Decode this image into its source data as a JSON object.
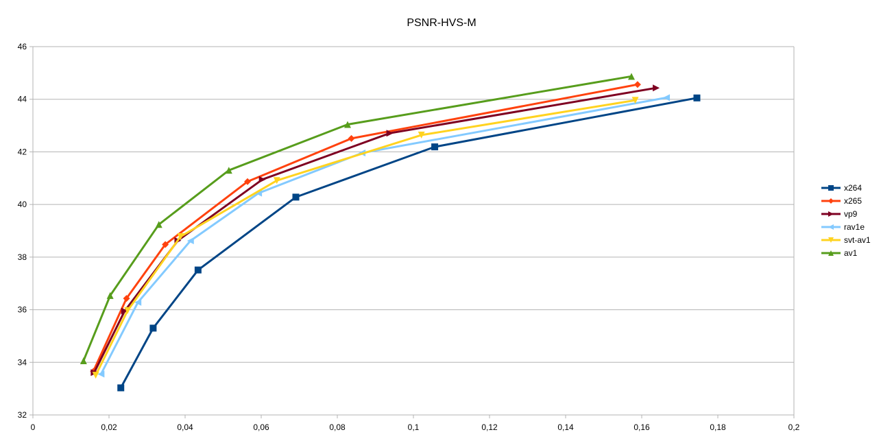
{
  "chart_data": {
    "type": "line",
    "title": "PSNR-HVS-M",
    "xlabel": "",
    "ylabel": "",
    "xlim": [
      0,
      0.2
    ],
    "ylim": [
      32,
      46
    ],
    "x_ticks": [
      0,
      0.02,
      0.04,
      0.06,
      0.08,
      0.1,
      0.12,
      0.14,
      0.16,
      0.18,
      0.2
    ],
    "x_tick_labels": [
      "0",
      "0,02",
      "0,04",
      "0,06",
      "0,08",
      "0,1",
      "0,12",
      "0,14",
      "0,16",
      "0,18",
      "0,2"
    ],
    "y_ticks": [
      32,
      34,
      36,
      38,
      40,
      42,
      44,
      46
    ],
    "y_tick_labels": [
      "32",
      "34",
      "36",
      "38",
      "40",
      "42",
      "44",
      "46"
    ],
    "grid": "horizontal",
    "legend_position": "right",
    "series": [
      {
        "name": "x264",
        "color": "#004586",
        "marker": "square",
        "points": [
          [
            0.0231,
            33.03
          ],
          [
            0.0316,
            35.3
          ],
          [
            0.0434,
            37.51
          ],
          [
            0.0691,
            40.28
          ],
          [
            0.1056,
            42.19
          ],
          [
            0.1745,
            44.05
          ]
        ]
      },
      {
        "name": "x265",
        "color": "#ff420e",
        "marker": "diamond",
        "points": [
          [
            0.0159,
            33.66
          ],
          [
            0.0246,
            36.43
          ],
          [
            0.0348,
            38.48
          ],
          [
            0.0564,
            40.87
          ],
          [
            0.0837,
            42.51
          ],
          [
            0.1589,
            44.56
          ]
        ]
      },
      {
        "name": "vp9",
        "color": "#7e0021",
        "marker": "triangle-right",
        "points": [
          [
            0.0161,
            33.61
          ],
          [
            0.0241,
            35.95
          ],
          [
            0.0381,
            38.63
          ],
          [
            0.0603,
            40.95
          ],
          [
            0.0938,
            42.71
          ],
          [
            0.1638,
            44.43
          ]
        ]
      },
      {
        "name": "rav1e",
        "color": "#83caff",
        "marker": "triangle-left",
        "points": [
          [
            0.0179,
            33.55
          ],
          [
            0.0276,
            36.28
          ],
          [
            0.0414,
            38.62
          ],
          [
            0.0593,
            40.43
          ],
          [
            0.0865,
            41.96
          ],
          [
            0.1665,
            44.06
          ]
        ]
      },
      {
        "name": "svt-av1",
        "color": "#ffd320",
        "marker": "triangle-down",
        "points": [
          [
            0.0165,
            33.51
          ],
          [
            0.0249,
            35.97
          ],
          [
            0.0388,
            38.78
          ],
          [
            0.0641,
            40.91
          ],
          [
            0.1021,
            42.64
          ],
          [
            0.1583,
            43.96
          ]
        ]
      },
      {
        "name": "av1",
        "color": "#579d1c",
        "marker": "triangle-up",
        "points": [
          [
            0.0133,
            34.06
          ],
          [
            0.0203,
            36.54
          ],
          [
            0.0331,
            39.24
          ],
          [
            0.0515,
            41.3
          ],
          [
            0.0827,
            43.04
          ],
          [
            0.1573,
            44.87
          ]
        ]
      }
    ]
  }
}
